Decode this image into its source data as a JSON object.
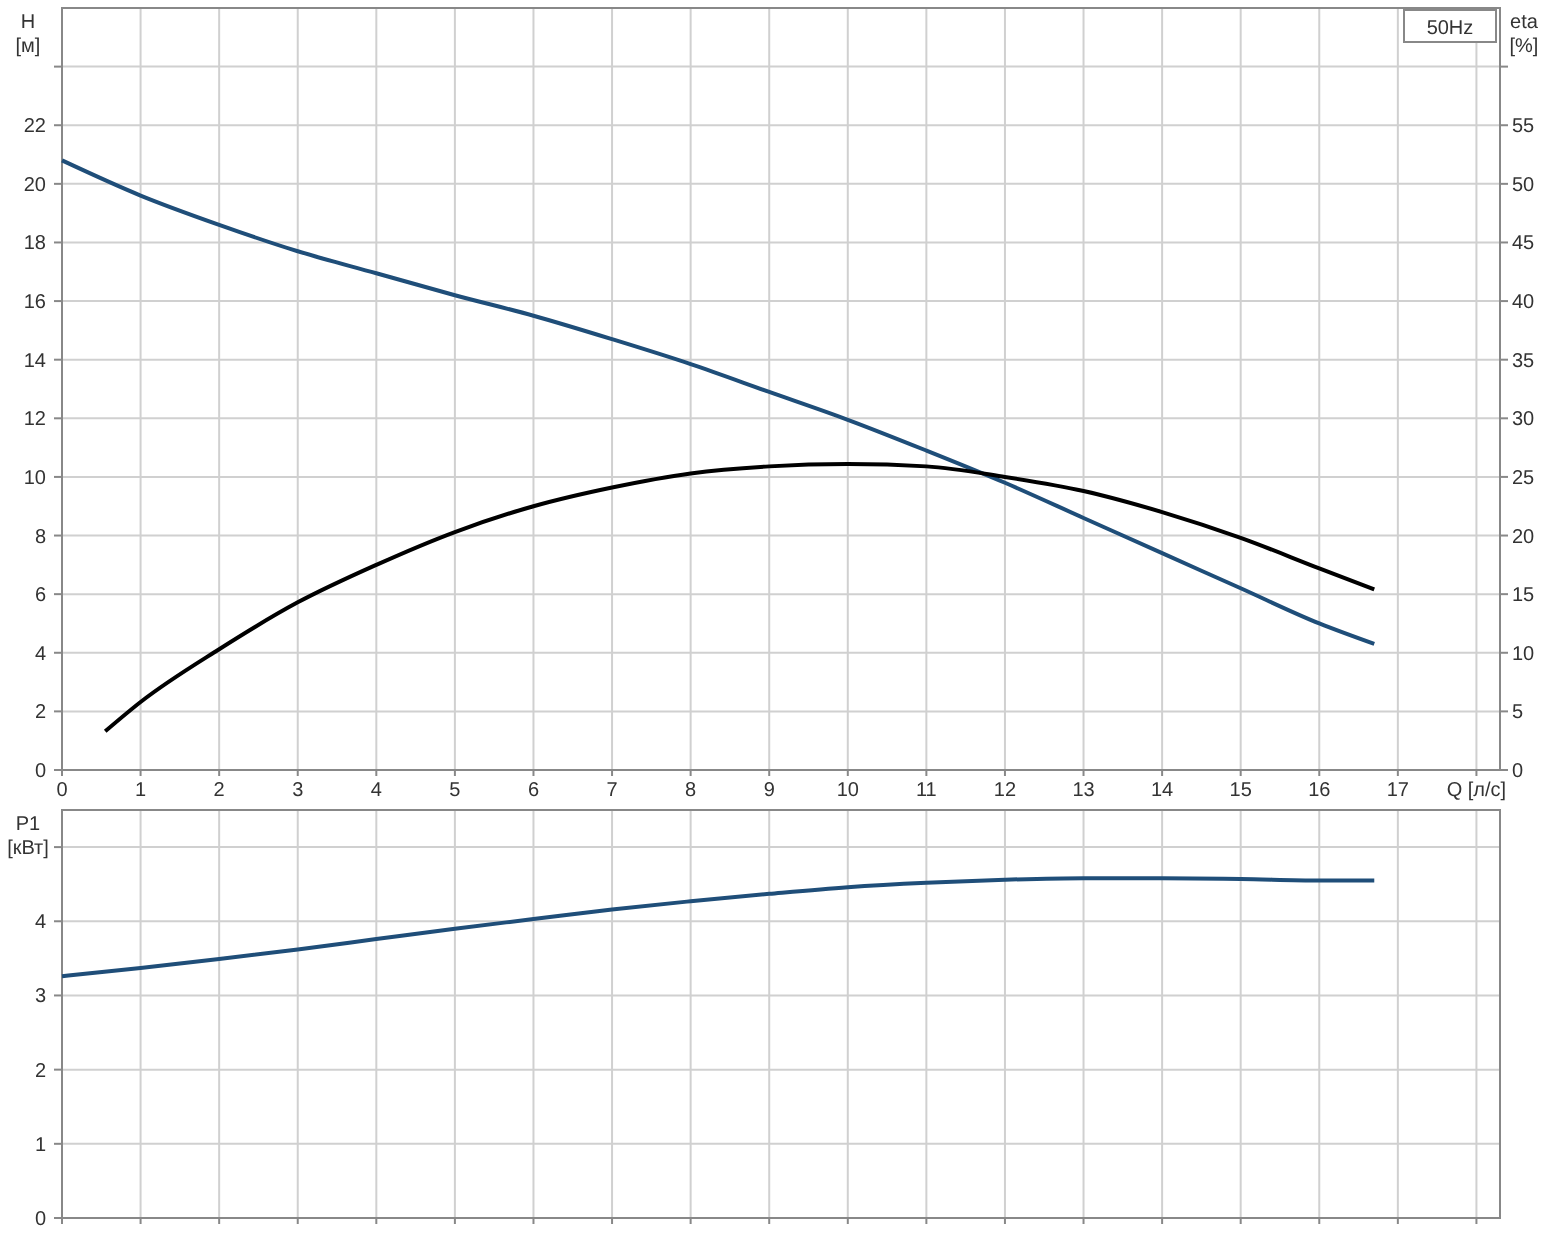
{
  "chart_data": [
    {
      "type": "line",
      "xlabel": "Q [л/с]",
      "ylabel": "H [м]",
      "y2label": "eta [%]",
      "annotations": [
        "50Hz"
      ],
      "grid": true,
      "marker": "none",
      "line_style": "solid",
      "xlim": [
        0,
        18.3
      ],
      "xticks": [
        0,
        1,
        2,
        3,
        4,
        5,
        6,
        7,
        8,
        9,
        10,
        11,
        12,
        13,
        14,
        15,
        16,
        17,
        {
          "value": 18,
          "label": null
        }
      ],
      "ylim": [
        0,
        26
      ],
      "yticks": [
        0,
        2,
        4,
        6,
        8,
        10,
        12,
        14,
        16,
        18,
        20,
        22,
        {
          "value": 24,
          "label": null
        }
      ],
      "y2lim": [
        0,
        65
      ],
      "y2ticks": [
        0,
        5,
        10,
        15,
        20,
        25,
        30,
        35,
        40,
        45,
        50,
        55,
        {
          "value": 60,
          "label": null
        }
      ],
      "series": [
        {
          "color": "#1f4e79",
          "x": [
            0,
            1,
            2,
            3,
            4,
            5,
            6,
            7,
            8,
            9,
            10,
            11,
            12,
            13,
            14,
            15,
            16,
            16.7
          ],
          "values": [
            20.8,
            19.6,
            18.6,
            17.7,
            16.95,
            16.2,
            15.5,
            14.7,
            13.85,
            12.9,
            11.95,
            10.9,
            9.8,
            8.6,
            7.4,
            6.2,
            5.0,
            4.3
          ]
        },
        {
          "color": "#000000",
          "axis": "y2",
          "x": [
            0.55,
            1,
            2,
            3,
            4,
            5,
            6,
            7,
            8,
            9,
            10,
            11,
            12,
            13,
            14,
            15,
            16,
            16.7
          ],
          "values": [
            3.3,
            5.8,
            10.3,
            14.3,
            17.5,
            20.3,
            22.5,
            24.1,
            25.3,
            25.9,
            26.1,
            25.9,
            25.0,
            23.8,
            22.0,
            19.8,
            17.2,
            15.4
          ]
        }
      ]
    },
    {
      "type": "line",
      "ylabel": "P1 [кВт]",
      "grid": true,
      "marker": "none",
      "line_style": "solid",
      "tick_labels": "y",
      "xlim": [
        0,
        18.3
      ],
      "xticks": [
        0,
        1,
        2,
        3,
        4,
        5,
        6,
        7,
        8,
        9,
        10,
        11,
        12,
        13,
        14,
        15,
        16,
        17,
        18
      ],
      "ylim": [
        0,
        5.5
      ],
      "yticks": [
        0,
        1,
        2,
        3,
        4,
        {
          "value": 5,
          "label": null
        }
      ],
      "series": [
        {
          "color": "#1f4e79",
          "x": [
            0,
            1,
            2,
            3,
            4,
            5,
            6,
            7,
            8,
            9,
            10,
            11,
            12,
            13,
            14,
            15,
            16,
            16.7
          ],
          "values": [
            3.26,
            3.37,
            3.49,
            3.62,
            3.76,
            3.9,
            4.03,
            4.16,
            4.27,
            4.37,
            4.46,
            4.52,
            4.56,
            4.58,
            4.58,
            4.57,
            4.55,
            4.55
          ]
        }
      ]
    }
  ]
}
